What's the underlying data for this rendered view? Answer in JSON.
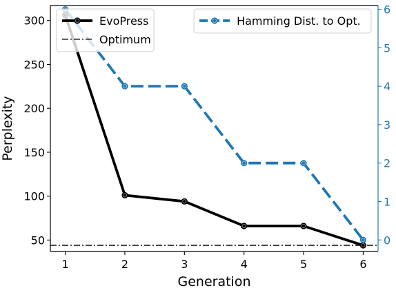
{
  "chart_data": {
    "type": "line",
    "x": [
      1,
      2,
      3,
      4,
      5,
      6
    ],
    "xlabel": "Generation",
    "xlim": [
      0.75,
      6.25
    ],
    "xticks": [
      1,
      2,
      3,
      4,
      5,
      6
    ],
    "left_axis": {
      "label": "Perplexity",
      "ylim": [
        37,
        317
      ],
      "ticks": [
        50,
        100,
        150,
        200,
        250,
        300
      ],
      "color": "#000000"
    },
    "right_axis": {
      "label": "",
      "ylim": [
        -0.3,
        6.1
      ],
      "ticks": [
        0,
        1,
        2,
        3,
        4,
        5,
        6
      ],
      "color": "#1f77b4"
    },
    "series": [
      {
        "name": "EvoPress",
        "axis": "left",
        "values": [
          306,
          101,
          94,
          66,
          66,
          44
        ],
        "color": "#000000",
        "style": "solid"
      },
      {
        "name": "Hamming Dist. to Opt.",
        "axis": "right",
        "values": [
          6,
          4,
          4,
          2,
          2,
          0
        ],
        "color": "#1f77b4",
        "style": "dashed"
      }
    ],
    "reference_lines": [
      {
        "name": "Optimum",
        "axis": "left",
        "value": 44,
        "color": "#000000",
        "style": "dashdot"
      }
    ],
    "legends": [
      {
        "placement": "top-left",
        "entries": [
          "EvoPress",
          "Optimum"
        ]
      },
      {
        "placement": "top-right",
        "entries": [
          "Hamming Dist. to Opt."
        ]
      }
    ],
    "grid": false
  }
}
